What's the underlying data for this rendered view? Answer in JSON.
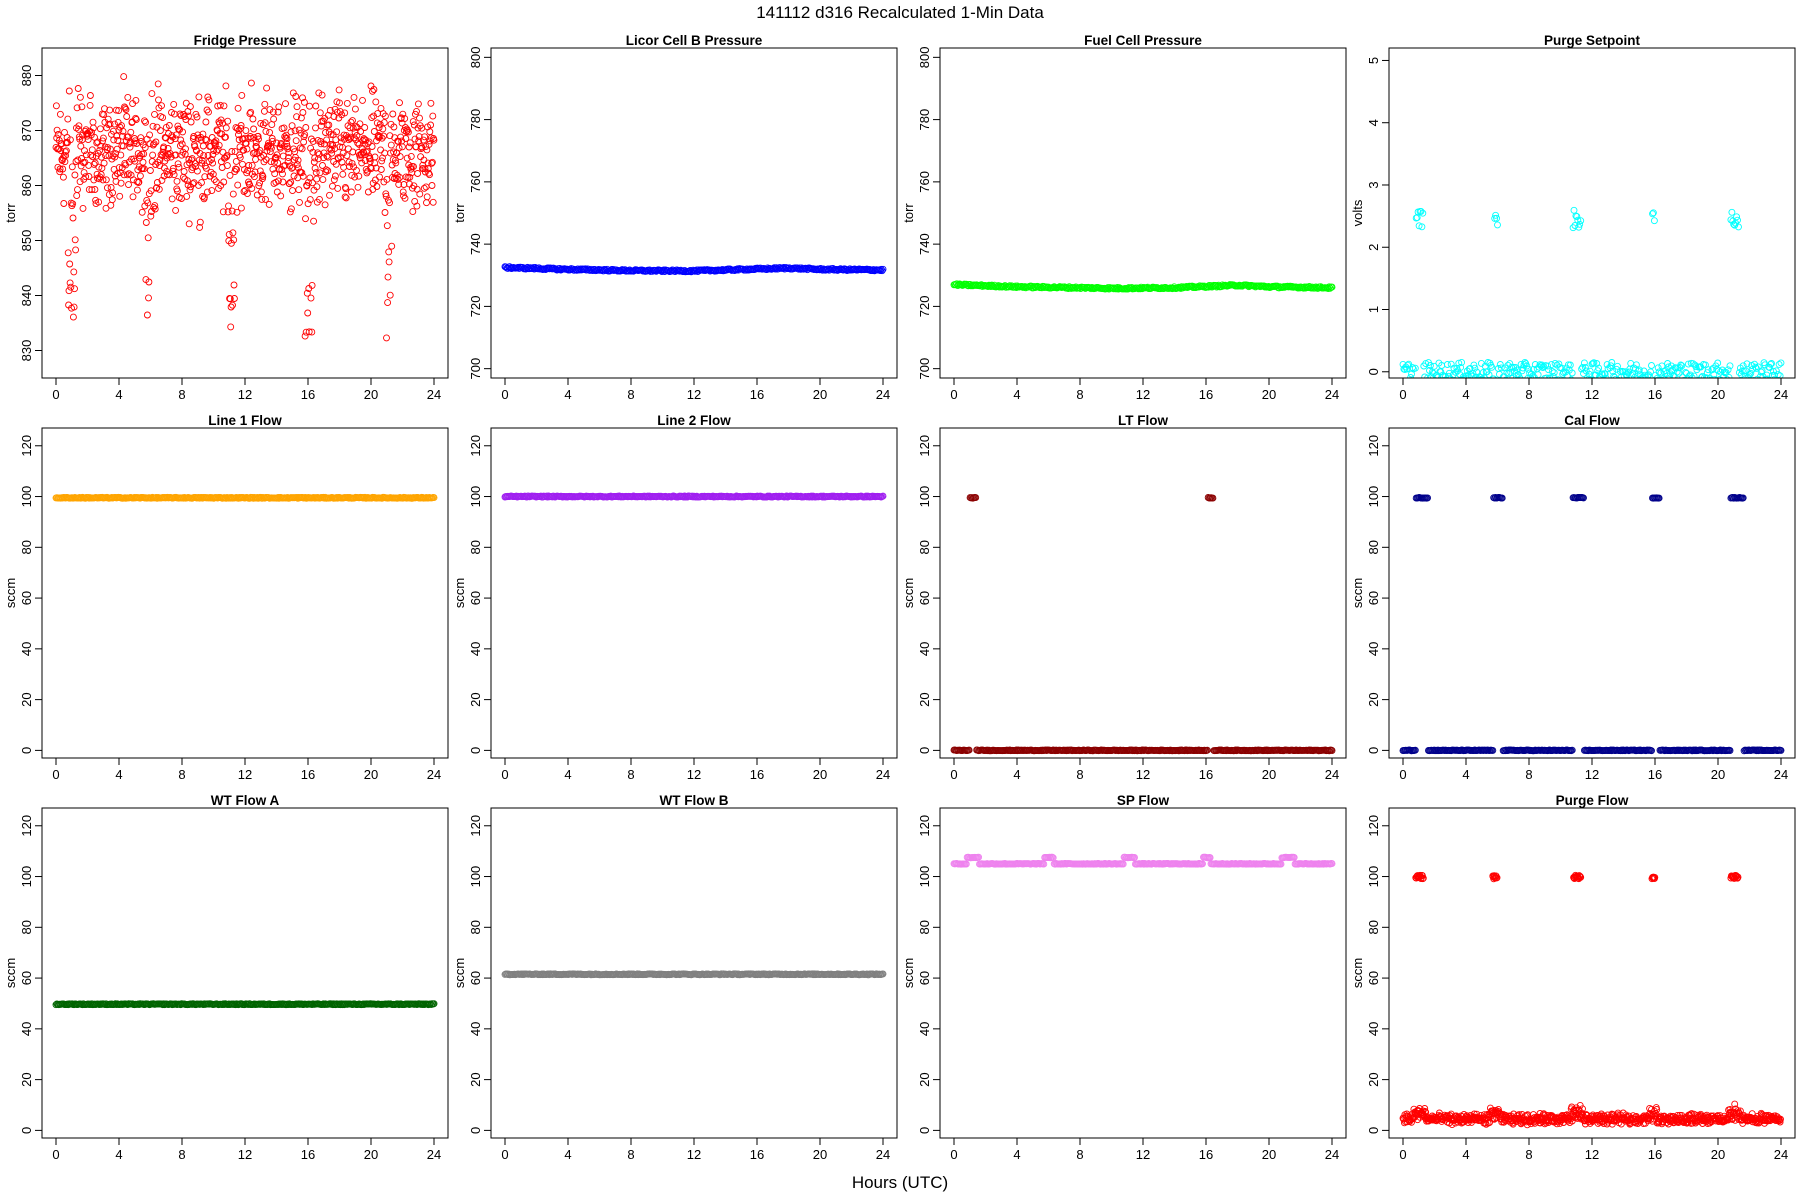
{
  "figure": {
    "title": "141112   d316   Recalculated 1-Min Data",
    "xlabel": "Hours (UTC)"
  },
  "chart_data": [
    {
      "type": "scatter",
      "title": "Fridge Pressure",
      "ylabel": "torr",
      "color": "#ff0000",
      "marker": "open-circle",
      "xlim": [
        0,
        24
      ],
      "xticks": [
        0,
        4,
        8,
        12,
        16,
        20,
        24
      ],
      "ylim": [
        825,
        885
      ],
      "yticks": [
        830,
        840,
        850,
        860,
        870,
        880
      ],
      "series": [
        {
          "pattern": "noise",
          "mean": 866,
          "spread": 8,
          "dips": [
            {
              "center": 1.0,
              "width": 0.6,
              "depth": 33
            },
            {
              "center": 5.9,
              "width": 0.4,
              "depth": 38
            },
            {
              "center": 11.1,
              "width": 0.5,
              "depth": 33
            },
            {
              "center": 16.1,
              "width": 0.6,
              "depth": 34
            },
            {
              "center": 21.1,
              "width": 0.5,
              "depth": 35
            }
          ]
        }
      ]
    },
    {
      "type": "scatter",
      "title": "Licor Cell B Pressure",
      "ylabel": "torr",
      "color": "#0000ff",
      "marker": "open-circle",
      "xlim": [
        0,
        24
      ],
      "xticks": [
        0,
        4,
        8,
        12,
        16,
        20,
        24
      ],
      "ylim": [
        697,
        803
      ],
      "yticks": [
        700,
        720,
        740,
        760,
        780,
        800
      ],
      "series": [
        {
          "pattern": "wave",
          "points": [
            [
              0,
              732.5
            ],
            [
              4,
              731.9
            ],
            [
              8,
              731.5
            ],
            [
              12,
              731.4
            ],
            [
              16,
              732.0
            ],
            [
              18,
              732.3
            ],
            [
              20,
              731.9
            ],
            [
              24,
              731.7
            ]
          ]
        }
      ]
    },
    {
      "type": "scatter",
      "title": "Fuel Cell Pressure",
      "ylabel": "torr",
      "color": "#00ff00",
      "marker": "open-circle",
      "xlim": [
        0,
        24
      ],
      "xticks": [
        0,
        4,
        8,
        12,
        16,
        20,
        24
      ],
      "ylim": [
        697,
        803
      ],
      "yticks": [
        700,
        720,
        740,
        760,
        780,
        800
      ],
      "series": [
        {
          "pattern": "wave",
          "points": [
            [
              0,
              727.0
            ],
            [
              4,
              726.3
            ],
            [
              8,
              726.0
            ],
            [
              10,
              725.8
            ],
            [
              14,
              726.0
            ],
            [
              18,
              726.8
            ],
            [
              20,
              726.3
            ],
            [
              24,
              726.0
            ]
          ]
        }
      ]
    },
    {
      "type": "scatter",
      "title": "Purge Setpoint",
      "ylabel": "volts",
      "color": "#00ffff",
      "marker": "open-circle",
      "xlim": [
        0,
        24
      ],
      "xticks": [
        0,
        4,
        8,
        12,
        16,
        20,
        24
      ],
      "ylim": [
        -0.1,
        5.2
      ],
      "yticks": [
        0,
        1,
        2,
        3,
        4,
        5
      ],
      "series": [
        {
          "pattern": "baseline-bursts",
          "base": 0.0,
          "burst_value": 2.45,
          "bursts": [
            [
              0.8,
              1.3
            ],
            [
              5.8,
              6.0
            ],
            [
              10.8,
              11.3
            ],
            [
              15.8,
              16.0
            ],
            [
              20.8,
              21.3
            ]
          ]
        }
      ]
    },
    {
      "type": "scatter",
      "title": "Line 1 Flow",
      "ylabel": "sccm",
      "color": "#ffa500",
      "marker": "open-circle",
      "xlim": [
        0,
        24
      ],
      "xticks": [
        0,
        4,
        8,
        12,
        16,
        20,
        24
      ],
      "ylim": [
        -3,
        127
      ],
      "yticks": [
        0,
        20,
        40,
        60,
        80,
        100,
        120
      ],
      "series": [
        {
          "pattern": "flat",
          "value": 99.5
        }
      ]
    },
    {
      "type": "scatter",
      "title": "Line 2 Flow",
      "ylabel": "sccm",
      "color": "#a020f0",
      "marker": "open-circle",
      "xlim": [
        0,
        24
      ],
      "xticks": [
        0,
        4,
        8,
        12,
        16,
        20,
        24
      ],
      "ylim": [
        -3,
        127
      ],
      "yticks": [
        0,
        20,
        40,
        60,
        80,
        100,
        120
      ],
      "series": [
        {
          "pattern": "flat",
          "value": 100.0
        }
      ]
    },
    {
      "type": "scatter",
      "title": "LT Flow",
      "ylabel": "sccm",
      "color": "#8b0000",
      "marker": "open-circle",
      "xlim": [
        0,
        24
      ],
      "xticks": [
        0,
        4,
        8,
        12,
        16,
        20,
        24
      ],
      "ylim": [
        -3,
        127
      ],
      "yticks": [
        0,
        20,
        40,
        60,
        80,
        100,
        120
      ],
      "series": [
        {
          "pattern": "baseline-bursts",
          "base": 0.0,
          "burst_value": 99.5,
          "bursts": [
            [
              1.0,
              1.4
            ],
            [
              16.1,
              16.5
            ]
          ]
        }
      ]
    },
    {
      "type": "scatter",
      "title": "Cal Flow",
      "ylabel": "sccm",
      "color": "#00008b",
      "marker": "open-circle",
      "xlim": [
        0,
        24
      ],
      "xticks": [
        0,
        4,
        8,
        12,
        16,
        20,
        24
      ],
      "ylim": [
        -3,
        127
      ],
      "yticks": [
        0,
        20,
        40,
        60,
        80,
        100,
        120
      ],
      "series": [
        {
          "pattern": "baseline-bursts",
          "base": 0.0,
          "burst_value": 99.5,
          "bursts": [
            [
              0.8,
              1.6
            ],
            [
              5.7,
              6.3
            ],
            [
              10.8,
              11.5
            ],
            [
              15.8,
              16.3
            ],
            [
              20.8,
              21.6
            ]
          ]
        }
      ]
    },
    {
      "type": "scatter",
      "title": "WT Flow A",
      "ylabel": "sccm",
      "color": "#006400",
      "marker": "open-circle",
      "xlim": [
        0,
        24
      ],
      "xticks": [
        0,
        4,
        8,
        12,
        16,
        20,
        24
      ],
      "ylim": [
        -3,
        127
      ],
      "yticks": [
        0,
        20,
        40,
        60,
        80,
        100,
        120
      ],
      "series": [
        {
          "pattern": "flat",
          "value": 49.7
        }
      ]
    },
    {
      "type": "scatter",
      "title": "WT Flow B",
      "ylabel": "sccm",
      "color": "#808080",
      "marker": "open-circle",
      "xlim": [
        0,
        24
      ],
      "xticks": [
        0,
        4,
        8,
        12,
        16,
        20,
        24
      ],
      "ylim": [
        -3,
        127
      ],
      "yticks": [
        0,
        20,
        40,
        60,
        80,
        100,
        120
      ],
      "series": [
        {
          "pattern": "flat",
          "value": 61.5
        }
      ]
    },
    {
      "type": "scatter",
      "title": "SP Flow",
      "ylabel": "sccm",
      "color": "#ee82ee",
      "marker": "open-circle",
      "xlim": [
        0,
        24
      ],
      "xticks": [
        0,
        4,
        8,
        12,
        16,
        20,
        24
      ],
      "ylim": [
        -3,
        127
      ],
      "yticks": [
        0,
        20,
        40,
        60,
        80,
        100,
        120
      ],
      "series": [
        {
          "pattern": "baseline-bursts",
          "base": 105.0,
          "burst_value": 107.5,
          "bursts": [
            [
              0.8,
              1.6
            ],
            [
              5.7,
              6.3
            ],
            [
              10.8,
              11.5
            ],
            [
              15.8,
              16.3
            ],
            [
              20.8,
              21.6
            ]
          ]
        }
      ]
    },
    {
      "type": "scatter",
      "title": "Purge Flow",
      "ylabel": "sccm",
      "color": "#ff0000",
      "marker": "open-circle",
      "xlim": [
        0,
        24
      ],
      "xticks": [
        0,
        4,
        8,
        12,
        16,
        20,
        24
      ],
      "ylim": [
        -3,
        127
      ],
      "yticks": [
        0,
        20,
        40,
        60,
        80,
        100,
        120
      ],
      "series": [
        {
          "pattern": "noise-bursts",
          "base": 4.5,
          "spread": 1.6,
          "burst_value": 99.8,
          "bursts": [
            [
              0.8,
              1.3
            ],
            [
              5.7,
              6.0
            ],
            [
              10.8,
              11.3
            ],
            [
              15.8,
              16.0
            ],
            [
              20.8,
              21.3
            ]
          ]
        }
      ]
    }
  ]
}
